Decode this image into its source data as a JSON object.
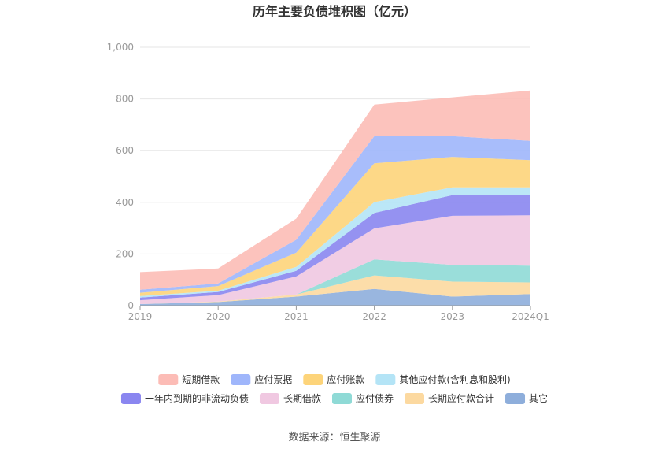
{
  "chart_data": {
    "type": "area",
    "stacked": true,
    "title": "历年主要负债堆积图（亿元）",
    "categories": [
      "2019",
      "2020",
      "2021",
      "2022",
      "2023",
      "2024Q1"
    ],
    "ylim": [
      0,
      1000
    ],
    "yticks": [
      "0",
      "200",
      "400",
      "600",
      "800",
      "1,000"
    ],
    "grid": true,
    "legend_position": "bottom",
    "series": [
      {
        "name": "其它",
        "color": "#8eaedb",
        "values": [
          6,
          14,
          35,
          65,
          35,
          45
        ]
      },
      {
        "name": "长期应付款合计",
        "color": "#fcd9a0",
        "values": [
          0,
          2,
          8,
          52,
          58,
          45
        ]
      },
      {
        "name": "应付债券",
        "color": "#8fdad6",
        "values": [
          0,
          0,
          0,
          62,
          65,
          65
        ]
      },
      {
        "name": "长期借款",
        "color": "#f0c8e1",
        "values": [
          15,
          25,
          70,
          120,
          190,
          195
        ]
      },
      {
        "name": "一年内到期的非流动负债",
        "color": "#8a86f0",
        "values": [
          10,
          12,
          22,
          60,
          80,
          80
        ]
      },
      {
        "name": "其他应付款(含利息和股利)",
        "color": "#b4e4f6",
        "values": [
          6,
          5,
          15,
          42,
          30,
          28
        ]
      },
      {
        "name": "应付账款",
        "color": "#fdd47a",
        "values": [
          13,
          18,
          55,
          150,
          118,
          105
        ]
      },
      {
        "name": "应付票据",
        "color": "#9fb6fb",
        "values": [
          12,
          10,
          50,
          105,
          80,
          75
        ]
      },
      {
        "name": "短期借款",
        "color": "#fcbcb6",
        "values": [
          68,
          58,
          82,
          122,
          150,
          195
        ]
      }
    ]
  },
  "legend_rows": [
    [
      "短期借款",
      "应付票据",
      "应付账款",
      "其他应付款(含利息和股利)"
    ],
    [
      "一年内到期的非流动负债",
      "长期借款",
      "应付债券",
      "长期应付款合计",
      "其它"
    ]
  ],
  "source": "数据来源：恒生聚源"
}
